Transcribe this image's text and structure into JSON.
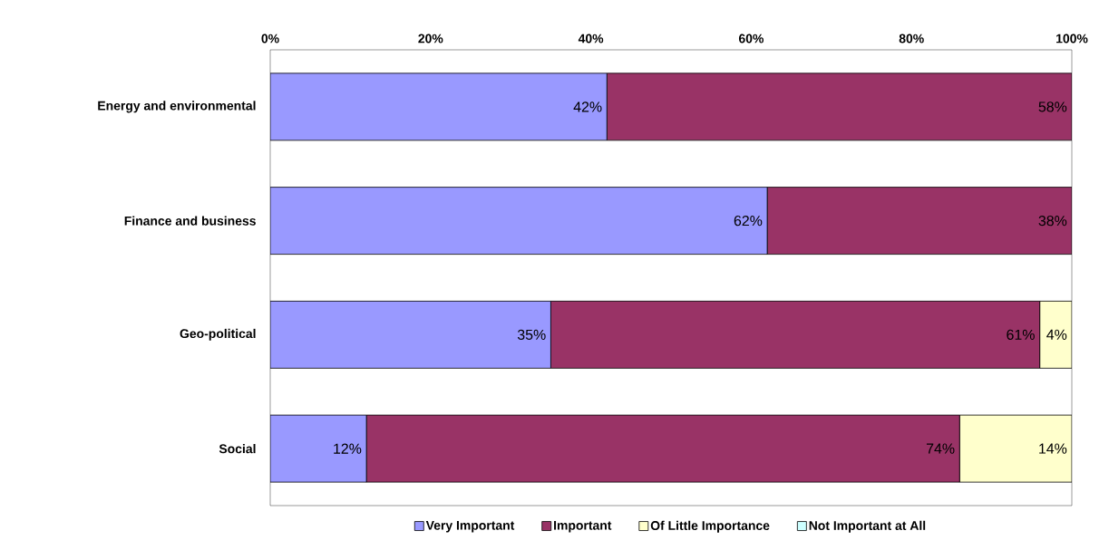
{
  "chart_data": {
    "type": "bar",
    "orientation": "horizontal",
    "stacked": true,
    "categories": [
      "Energy and environmental",
      "Finance and business",
      "Geo-political",
      "Social"
    ],
    "series": [
      {
        "name": "Very Important",
        "color": "#9999ff",
        "values": [
          42,
          62,
          35,
          12
        ],
        "value_labels": [
          "42%",
          "62%",
          "35%",
          "12%"
        ]
      },
      {
        "name": "Important",
        "color": "#993366",
        "values": [
          58,
          38,
          61,
          74
        ],
        "value_labels": [
          "58%",
          "38%",
          "61%",
          "74%"
        ]
      },
      {
        "name": "Of Little Importance",
        "color": "#ffffcc",
        "values": [
          0,
          0,
          4,
          14
        ],
        "value_labels": [
          null,
          null,
          "4%",
          "14%"
        ]
      },
      {
        "name": "Not Important at All",
        "color": "#ccffff",
        "values": [
          0,
          0,
          0,
          0
        ],
        "value_labels": [
          null,
          null,
          null,
          null
        ]
      }
    ],
    "xlim": [
      0,
      100
    ],
    "xticks": [
      {
        "value": 0,
        "label": "0%"
      },
      {
        "value": 20,
        "label": "20%"
      },
      {
        "value": 40,
        "label": "40%"
      },
      {
        "value": 60,
        "label": "60%"
      },
      {
        "value": 80,
        "label": "80%"
      },
      {
        "value": 100,
        "label": "100%"
      }
    ],
    "legend": "bottom"
  }
}
